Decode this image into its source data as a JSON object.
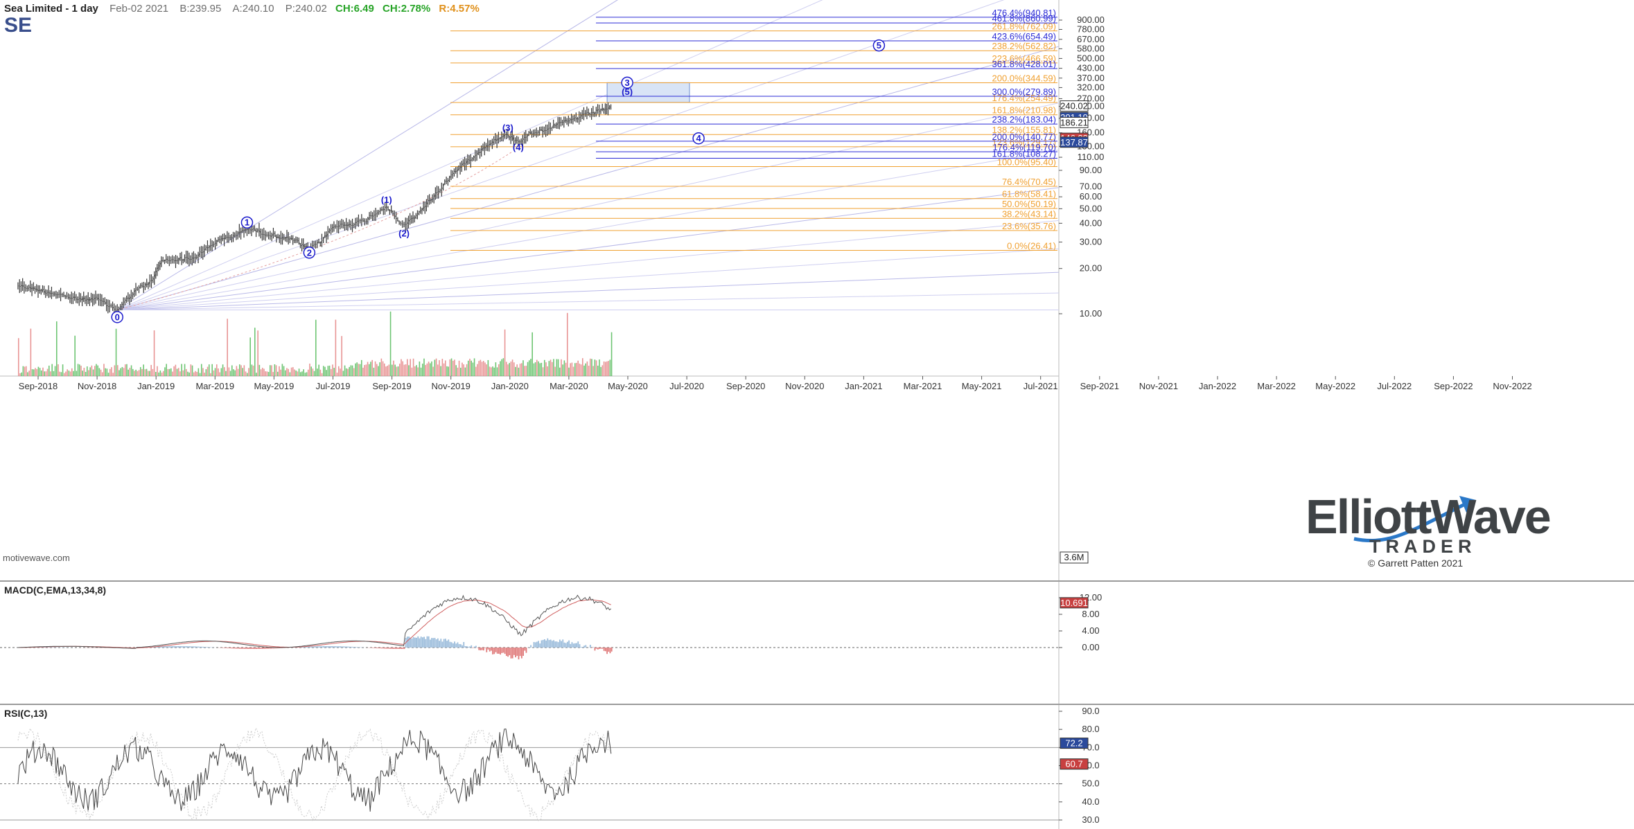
{
  "header": {
    "name": "Sea Limited - 1 day",
    "date": "Feb-02 2021",
    "bid": "B:239.95",
    "ask": "A:240.10",
    "price": "P:240.02",
    "change": "CH:6.49",
    "change_pct": "CH:2.78%",
    "range": "R:4.57%"
  },
  "symbol": "SE",
  "source_tag": "motivewave.com",
  "colors": {
    "blue_fib": "#2b2bd6",
    "orange_fib": "#f0a030",
    "wave_label": "#1a1acc",
    "volume_green": "#3cb043",
    "volume_red": "#e07070",
    "macd_line": "#555555",
    "macd_signal": "#d06060",
    "hist_up": "#9bbcdb",
    "hist_down": "#e07a7a",
    "target_box": "#d8e4f6"
  },
  "logo": {
    "text_main": "ElliottWave",
    "text_sub": "TRADER",
    "copyright": "© Garrett Patten 2021"
  },
  "chart_data": [
    {
      "type": "candlestick",
      "title": "Sea Limited - 1 day",
      "scale": "log",
      "ylim": [
        8,
        1000
      ],
      "x_ticks": [
        "Sep-2018",
        "Nov-2018",
        "Jan-2019",
        "Mar-2019",
        "May-2019",
        "Jul-2019",
        "Sep-2019",
        "Nov-2019",
        "Jan-2020",
        "Mar-2020",
        "May-2020",
        "Jul-2020",
        "Sep-2020",
        "Nov-2020",
        "Jan-2021",
        "Mar-2021",
        "May-2021",
        "Jul-2021",
        "Sep-2021",
        "Nov-2021",
        "Jan-2022",
        "Mar-2022",
        "May-2022",
        "Jul-2022",
        "Sep-2022",
        "Nov-2022"
      ],
      "y_ticks": [
        "900.00",
        "780.00",
        "670.00",
        "580.00",
        "500.00",
        "430.00",
        "370.00",
        "320.00",
        "270.00",
        "240.00",
        "200.00",
        "160.00",
        "130.00",
        "110.00",
        "90.00",
        "70.00",
        "60.00",
        "50.00",
        "40.00",
        "30.00",
        "20.00",
        "10.00"
      ],
      "price_path": [
        {
          "date": "2018-08-01",
          "close": 15.5
        },
        {
          "date": "2018-09-01",
          "close": 14.5
        },
        {
          "date": "2018-10-01",
          "close": 13.5
        },
        {
          "date": "2018-11-01",
          "close": 12.5
        },
        {
          "date": "2018-12-01",
          "close": 12.5
        },
        {
          "date": "2019-01-01",
          "close": 10.6
        },
        {
          "date": "2019-02-01",
          "close": 14.5
        },
        {
          "date": "2019-02-25",
          "close": 16.5
        },
        {
          "date": "2019-03-10",
          "close": 22.5
        },
        {
          "date": "2019-04-01",
          "close": 23.0
        },
        {
          "date": "2019-05-01",
          "close": 23.5
        },
        {
          "date": "2019-06-01",
          "close": 30.0
        },
        {
          "date": "2019-07-01",
          "close": 33.0
        },
        {
          "date": "2019-07-20",
          "close": 37.0
        },
        {
          "date": "2019-08-10",
          "close": 35.0
        },
        {
          "date": "2019-09-01",
          "close": 33.0
        },
        {
          "date": "2019-10-01",
          "close": 31.0
        },
        {
          "date": "2019-10-24",
          "close": 26.5
        },
        {
          "date": "2019-11-10",
          "close": 30.0
        },
        {
          "date": "2019-12-01",
          "close": 38.0
        },
        {
          "date": "2020-01-15",
          "close": 41.0
        },
        {
          "date": "2020-02-20",
          "close": 52.0
        },
        {
          "date": "2020-03-18",
          "close": 38.0
        },
        {
          "date": "2020-04-10",
          "close": 47.0
        },
        {
          "date": "2020-05-10",
          "close": 65.0
        },
        {
          "date": "2020-06-01",
          "close": 85.0
        },
        {
          "date": "2020-07-01",
          "close": 110.0
        },
        {
          "date": "2020-08-01",
          "close": 140.0
        },
        {
          "date": "2020-08-25",
          "close": 155.0
        },
        {
          "date": "2020-09-10",
          "close": 140.0
        },
        {
          "date": "2020-10-01",
          "close": 160.0
        },
        {
          "date": "2020-11-01",
          "close": 175.0
        },
        {
          "date": "2020-12-01",
          "close": 195.0
        },
        {
          "date": "2021-01-01",
          "close": 215.0
        },
        {
          "date": "2021-01-20",
          "close": 230.0
        },
        {
          "date": "2021-02-02",
          "close": 240.02
        }
      ],
      "wave_labels": [
        {
          "label": "0",
          "style": "circle",
          "date": "2019-01-01",
          "price": 9.5
        },
        {
          "label": "1",
          "style": "circle",
          "date": "2019-07-20",
          "price": 40.5
        },
        {
          "label": "2",
          "style": "circle",
          "date": "2019-10-24",
          "price": 25.5
        },
        {
          "label": "(1)",
          "style": "paren",
          "date": "2020-02-20",
          "price": 57.0
        },
        {
          "label": "(2)",
          "style": "paren",
          "date": "2020-03-18",
          "price": 34.0
        },
        {
          "label": "(3)",
          "style": "paren",
          "date": "2020-08-25",
          "price": 172.0
        },
        {
          "label": "(4)",
          "style": "paren",
          "date": "2020-09-10",
          "price": 128.0
        },
        {
          "label": "3",
          "style": "circle",
          "date": "2021-02-25",
          "price": 345.0
        },
        {
          "label": "(5)",
          "style": "paren",
          "date": "2021-02-25",
          "price": 298.0
        },
        {
          "label": "4",
          "style": "circle",
          "date": "2021-06-15",
          "price": 147.0
        },
        {
          "label": "5",
          "style": "circle",
          "date": "2022-03-20",
          "price": 610.0
        }
      ],
      "target_box": {
        "start": "2021-01-25",
        "end": "2021-06-01",
        "low": 255,
        "high": 345
      },
      "fib_levels_orange": [
        {
          "label": "261.8%(762.09)",
          "price": 762.09
        },
        {
          "label": "238.2%(562.82)",
          "price": 562.82
        },
        {
          "label": "223.6%(466.59)",
          "price": 466.59
        },
        {
          "label": "200.0%(344.59)",
          "price": 344.59
        },
        {
          "label": "176.4%(254.49)",
          "price": 254.49
        },
        {
          "label": "161.8%(210.98)",
          "price": 210.98
        },
        {
          "label": "138.2%(155.81)",
          "price": 155.81
        },
        {
          "label": "123.6%(129.17)",
          "price": 129.17
        },
        {
          "label": "100.0%(95.40)",
          "price": 95.4
        },
        {
          "label": "76.4%(70.45)",
          "price": 70.45
        },
        {
          "label": "61.8%(58.41)",
          "price": 58.41
        },
        {
          "label": "50.0%(50.19)",
          "price": 50.19
        },
        {
          "label": "38.2%(43.14)",
          "price": 43.14
        },
        {
          "label": "23.6%(35.76)",
          "price": 35.76
        },
        {
          "label": "0.0%(26.41)",
          "price": 26.41
        }
      ],
      "fib_levels_blue": [
        {
          "label": "476.4%(940.81)",
          "price": 940.81
        },
        {
          "label": "461.8%(860.99)",
          "price": 860.99
        },
        {
          "label": "423.6%(654.49)",
          "price": 654.49
        },
        {
          "label": "361.8%(428.01)",
          "price": 428.01
        },
        {
          "label": "300.0%(279.89)",
          "price": 279.89
        },
        {
          "label": "238.2%(183.04)",
          "price": 183.04
        },
        {
          "label": "200.0%(140.77)",
          "price": 140.77
        },
        {
          "label": "176.4%(119.70)",
          "price": 119.7
        },
        {
          "label": "161.8%(108.27)",
          "price": 108.27
        }
      ],
      "price_tags": [
        {
          "label": "240.02",
          "price": 240.02
        },
        {
          "label": "201.19",
          "price": 201.19
        },
        {
          "label": "186.21",
          "price": 186.21
        },
        {
          "label": "146.33",
          "price": 146.33
        },
        {
          "label": "137.87",
          "price": 137.87
        }
      ],
      "volume_tag": "3.6M"
    },
    {
      "type": "line",
      "title": "MACD(C,EMA,13,34,8)",
      "ylim": [
        -2.5,
        16
      ],
      "y_ticks": [
        "12.00",
        "8.00",
        "4.00",
        "0.00"
      ],
      "current_value": "10.691"
    },
    {
      "type": "line",
      "title": "RSI(C,13)",
      "ylim": [
        18,
        92
      ],
      "y_ticks": [
        "90.0",
        "80.0",
        "70.0",
        "60.0",
        "50.0",
        "40.0",
        "30.0"
      ],
      "levels": [
        70,
        50,
        30
      ],
      "current_value": "72.2",
      "secondary_value": "60.7"
    }
  ]
}
